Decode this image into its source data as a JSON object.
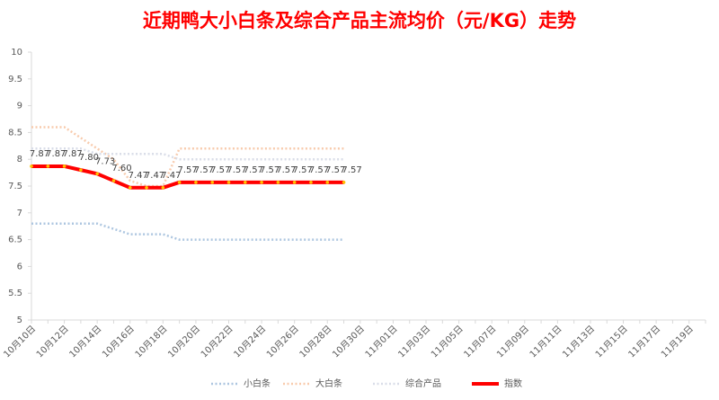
{
  "chart_data": {
    "type": "line",
    "title": "近期鸭大小白条及综合产品主流均价（元/KG）走势",
    "categories": [
      "10月10日",
      null,
      "10月12日",
      null,
      "10月14日",
      null,
      "10月16日",
      null,
      "10月18日",
      null,
      "10月20日",
      null,
      "10月22日",
      null,
      "10月24日",
      null,
      "10月26日",
      null,
      "10月28日",
      null,
      "10月30日",
      null,
      "11月01日",
      null,
      "11月03日",
      null,
      "11月05日",
      null,
      "11月07日",
      null,
      "11月09日",
      null,
      "11月11日",
      null,
      "11月13日",
      null,
      "11月15日",
      null,
      "11月17日",
      null,
      "11月19日",
      null
    ],
    "series": [
      {
        "name": "小白条",
        "color": "#adc6e0",
        "style": "dotted",
        "values": [
          6.8,
          6.8,
          6.8,
          6.8,
          6.8,
          6.7,
          6.6,
          6.6,
          6.6,
          6.5,
          6.5,
          6.5,
          6.5,
          6.5,
          6.5,
          6.5,
          6.5,
          6.5,
          6.5,
          6.5,
          null,
          null,
          null,
          null,
          null,
          null,
          null,
          null,
          null,
          null,
          null,
          null,
          null,
          null,
          null,
          null,
          null,
          null,
          null,
          null,
          null,
          null
        ]
      },
      {
        "name": "大白条",
        "color": "#f8cbad",
        "style": "dotted",
        "values": [
          8.6,
          8.6,
          8.6,
          8.4,
          8.2,
          8.0,
          7.6,
          7.5,
          7.5,
          8.2,
          8.2,
          8.2,
          8.2,
          8.2,
          8.2,
          8.2,
          8.2,
          8.2,
          8.2,
          8.2,
          null,
          null,
          null,
          null,
          null,
          null,
          null,
          null,
          null,
          null,
          null,
          null,
          null,
          null,
          null,
          null,
          null,
          null,
          null,
          null,
          null,
          null
        ]
      },
      {
        "name": "综合产品",
        "color": "#d9dde8",
        "style": "dotted",
        "values": [
          8.2,
          8.2,
          8.2,
          8.2,
          8.1,
          8.1,
          8.1,
          8.1,
          8.1,
          8.0,
          8.0,
          8.0,
          8.0,
          8.0,
          8.0,
          8.0,
          8.0,
          8.0,
          8.0,
          8.0,
          null,
          null,
          null,
          null,
          null,
          null,
          null,
          null,
          null,
          null,
          null,
          null,
          null,
          null,
          null,
          null,
          null,
          null,
          null,
          null,
          null,
          null
        ]
      },
      {
        "name": "指数",
        "color": "#ff0000",
        "style": "thick",
        "values": [
          7.87,
          7.87,
          7.87,
          7.8,
          7.73,
          7.6,
          7.47,
          7.47,
          7.47,
          7.57,
          7.57,
          7.57,
          7.57,
          7.57,
          7.57,
          7.57,
          7.57,
          7.57,
          7.57,
          7.57,
          null,
          null,
          null,
          null,
          null,
          null,
          null,
          null,
          null,
          null,
          null,
          null,
          null,
          null,
          null,
          null,
          null,
          null,
          null,
          null,
          null,
          null
        ],
        "value_labels": [
          "7.87",
          "7.87",
          "7.87",
          "7.80",
          "7.73",
          "7.60",
          "7.47",
          "7.47",
          "7.47",
          "7.57",
          "7.57",
          "7.57",
          "7.57",
          "7.57",
          "7.57",
          "7.57",
          "7.57",
          "7.57",
          "7.57",
          "7.57",
          null,
          null,
          null,
          null,
          null,
          null,
          null,
          null,
          null,
          null,
          null,
          null,
          null,
          null,
          null,
          null,
          null,
          null,
          null,
          null,
          null,
          null
        ]
      }
    ],
    "ylim": [
      5,
      10
    ],
    "yticks": [
      5,
      5.5,
      6,
      6.5,
      7,
      7.5,
      8,
      8.5,
      9,
      9.5,
      10
    ],
    "grid": false,
    "legend": "bottom"
  }
}
